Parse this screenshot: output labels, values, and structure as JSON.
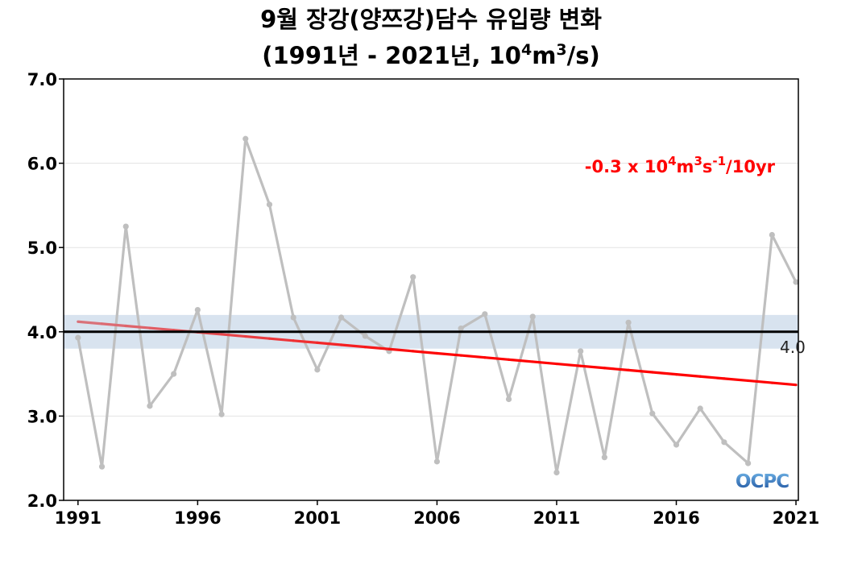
{
  "chart_data": {
    "type": "line",
    "title_line1": "9월 장강(양쯔강)담수 유입량 변화",
    "title_line2_pre": "(1991년 - 2021년, 10",
    "title_line2_sup1": "4",
    "title_line2_mid": "m",
    "title_line2_sup2": "3",
    "title_line2_post": "/s)",
    "xlim": [
      1990.4,
      2021.1
    ],
    "ylim": [
      2.0,
      7.0
    ],
    "x_ticks": [
      "1991",
      "1996",
      "2001",
      "2006",
      "2011",
      "2016",
      "2021"
    ],
    "y_ticks": [
      "2.0",
      "3.0",
      "4.0",
      "5.0",
      "6.0",
      "7.0"
    ],
    "grid": true,
    "series": [
      {
        "x": [
          1991,
          1992,
          1993,
          1994,
          1995,
          1996,
          1997,
          1998,
          1999,
          2000,
          2001,
          2002,
          2003,
          2004,
          2005,
          2006,
          2007,
          2008,
          2009,
          2010,
          2011,
          2012,
          2013,
          2014,
          2015,
          2016,
          2017,
          2018,
          2019,
          2020,
          2021
        ],
        "values": [
          3.93,
          2.4,
          5.25,
          3.12,
          3.5,
          4.26,
          3.02,
          6.29,
          5.51,
          4.17,
          3.55,
          4.17,
          3.95,
          3.77,
          4.65,
          2.46,
          4.04,
          4.21,
          3.2,
          4.18,
          2.33,
          3.77,
          2.51,
          4.11,
          3.03,
          2.66,
          3.09,
          2.69,
          2.44,
          5.15,
          4.59
        ],
        "color": "#bfbfbf"
      }
    ],
    "mean": {
      "value": 4.0,
      "label": "4.0",
      "band": [
        3.8,
        4.2
      ],
      "band_color": "#d8e3ef",
      "color": "#000000"
    },
    "trend": {
      "start": [
        1991,
        4.12
      ],
      "end": [
        2021,
        3.37
      ],
      "color_start": "#d9727a",
      "color_end": "#ff0000",
      "label_pre": "-0.3 x 10",
      "label_sup1": "4",
      "label_m": "m",
      "label_sup2": "3",
      "label_s": "s",
      "label_sup3": "-1",
      "label_post": "/10yr"
    },
    "logo": {
      "text": "OCPC",
      "color": "#1f5fa8"
    }
  }
}
